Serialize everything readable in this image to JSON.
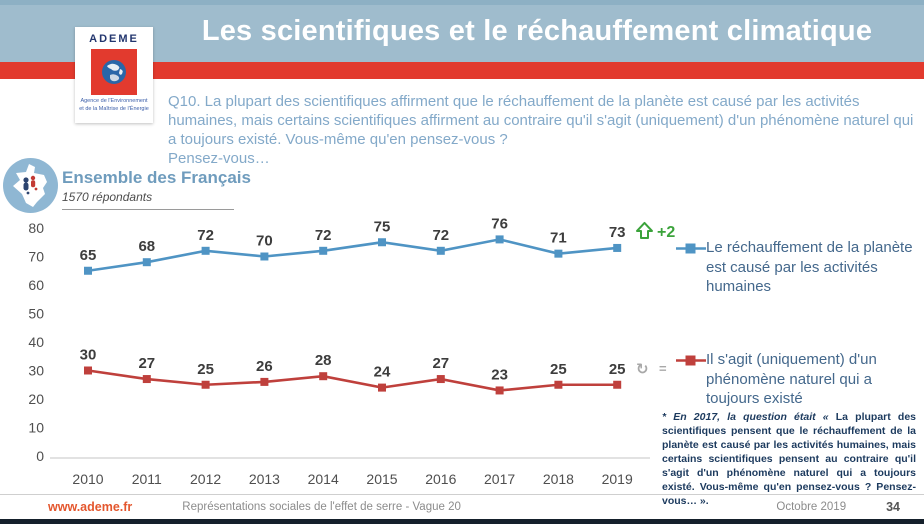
{
  "header": {
    "title": "Les scientifiques et le réchauffement climatique"
  },
  "logo": {
    "name": "ADEME",
    "tagline1": "Agence de l'Environnement",
    "tagline2": "et de la Maîtrise de l'Énergie"
  },
  "question": {
    "text": "Q10. La plupart des scientifiques affirment que le réchauffement de la planète est causé par les activités humaines, mais certains scientifiques affirment au contraire qu'il s'agit (uniquement) d'un phénomène naturel qui a toujours existé. Vous-même qu'en pensez-vous ?",
    "followup": "Pensez-vous…"
  },
  "sample": {
    "label": "Ensemble des Français",
    "respondents": "1570 répondants"
  },
  "chart_data": {
    "type": "line",
    "title": "",
    "categories": [
      "2010",
      "2011",
      "2012",
      "2013",
      "2014",
      "2015",
      "2016",
      "2017",
      "2018",
      "2019"
    ],
    "series": [
      {
        "name": "Le réchauffement de la planète est causé par les activités humaines",
        "color": "#4f94c4",
        "values": [
          65,
          68,
          72,
          70,
          72,
          75,
          72,
          76,
          71,
          73
        ],
        "trend_label": "+2",
        "trend_icon": "up-arrow",
        "trend_color": "#3ba33b"
      },
      {
        "name": "Il s'agit (uniquement) d'un phénomène naturel qui a toujours existé",
        "color": "#bf403c",
        "values": [
          30,
          27,
          25,
          26,
          28,
          24,
          27,
          23,
          25,
          25
        ],
        "trend_label": "=",
        "trend_icon": "stable-circular-arrow",
        "trend_color": "#a8a8a8"
      }
    ],
    "xlabel": "",
    "ylabel": "",
    "ylim": [
      0,
      80
    ],
    "yticks": [
      0,
      10,
      20,
      30,
      40,
      50,
      60,
      70,
      80
    ],
    "grid": false,
    "legend_position": "right",
    "marker": "square"
  },
  "footnote": {
    "lead": "* En 2017, la question était « ",
    "body": "La plupart des scientifiques pensent que le réchauffement de la planète est causé par les activités humaines, mais certains scientifiques pensent au contraire qu'il s'agit d'un phénomène naturel qui a toujours existé. Vous-même qu'en pensez-vous ? Pensez-vous… »."
  },
  "footer": {
    "website": "www.ademe.fr",
    "report": "Représentations sociales de l'effet de serre - Vague 20",
    "date": "Octobre 2019",
    "page": "34"
  }
}
